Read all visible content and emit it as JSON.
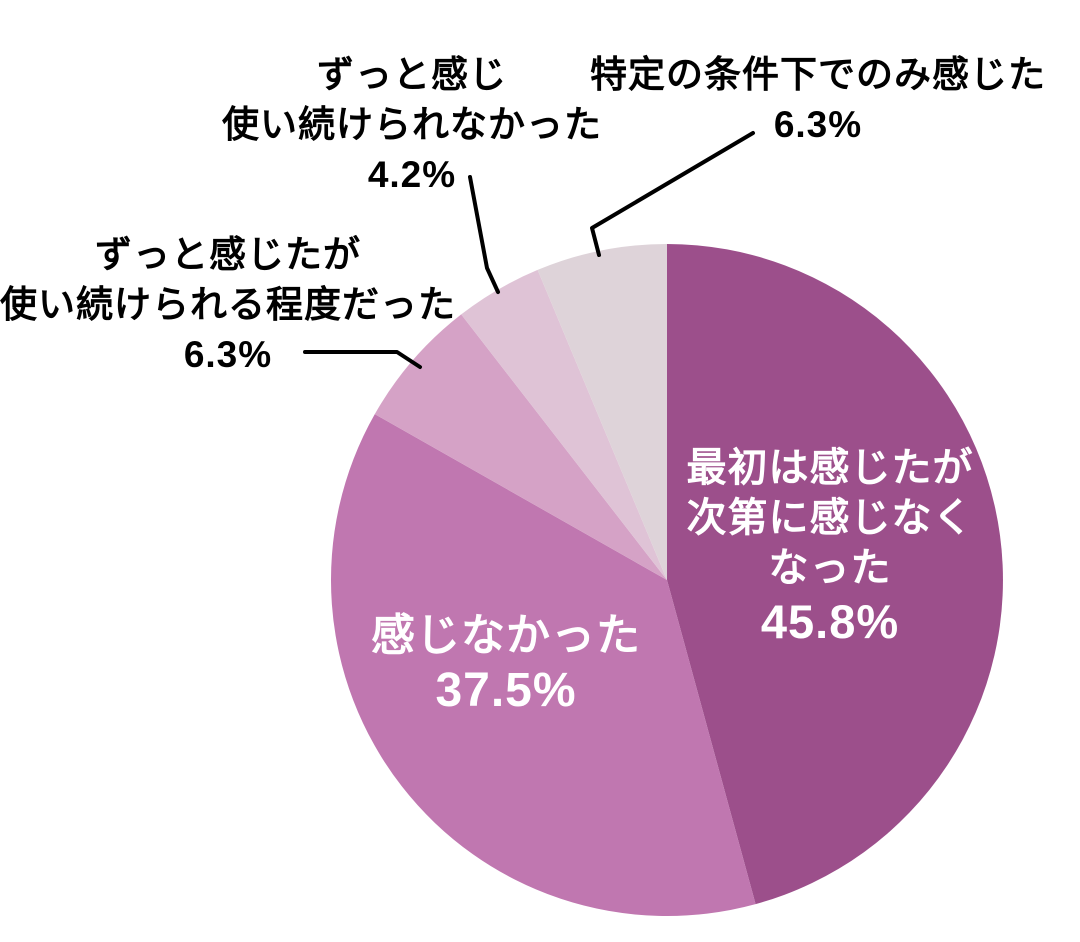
{
  "chart_data": {
    "type": "pie",
    "title": "",
    "unit": "%",
    "start_angle_deg": 0,
    "direction": "clockwise",
    "legend": "none",
    "slices": [
      {
        "label": "最初は感じたが次第に感じなくなった",
        "value": 45.8,
        "color": "#9c4f8b",
        "label_position": "inside",
        "label_color": "#ffffff"
      },
      {
        "label": "感じなかった",
        "value": 37.5,
        "color": "#c077b0",
        "label_position": "inside",
        "label_color": "#ffffff"
      },
      {
        "label": "ずっと感じたが使い続けられる程度だった",
        "value": 6.3,
        "color": "#d5a2c6",
        "label_position": "outside-left",
        "label_color": "#000000"
      },
      {
        "label": "ずっと感じ使い続けられなかった",
        "value": 4.2,
        "color": "#dfc3d6",
        "label_position": "outside-top",
        "label_color": "#000000"
      },
      {
        "label": "特定の条件下でのみ感じた",
        "value": 6.3,
        "color": "#ded3d9",
        "label_position": "outside-top-right",
        "label_color": "#000000"
      }
    ]
  },
  "labels": {
    "saisho": {
      "lines": [
        "最初は感じたが",
        "次第に感じなく",
        "なった"
      ],
      "pct": "45.8%"
    },
    "kanjinakatta": {
      "lines": [
        "感じなかった"
      ],
      "pct": "37.5%"
    },
    "zutto_teido": {
      "lines": [
        "ずっと感じたが",
        "使い続けられる程度だった"
      ],
      "pct": "6.3%"
    },
    "zutto_nakatta": {
      "lines": [
        "ずっと感じ",
        "使い続けられなかった"
      ],
      "pct": "4.2%"
    },
    "tokutei": {
      "lines": [
        "特定の条件下でのみ感じた"
      ],
      "pct": "6.3%"
    }
  },
  "colors": {
    "background": "#ffffff",
    "leader_line": "#000000",
    "inside_label_text": "#ffffff",
    "outside_label_text": "#000000"
  }
}
